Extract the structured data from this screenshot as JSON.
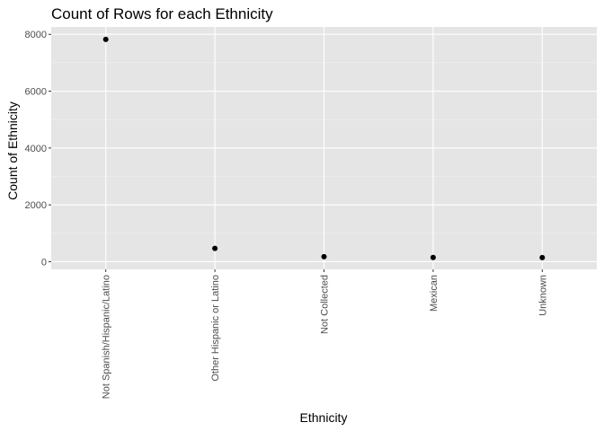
{
  "chart_data": {
    "type": "scatter",
    "title": "Count of Rows for each Ethnicity",
    "xlabel": "Ethnicity",
    "ylabel": "Count of Ethnicity",
    "categories": [
      "Not Spanish/Hispanic/Latino",
      "Other Hispanic or Latino",
      "Not Collected",
      "Mexican",
      "Unknown"
    ],
    "values": [
      7820,
      470,
      175,
      150,
      145
    ],
    "ylim": [
      -270,
      8260
    ],
    "yticks": [
      0,
      2000,
      4000,
      6000,
      8000
    ],
    "grid": true,
    "legend": "none",
    "colors": {
      "panel": "#e5e5e5",
      "grid_major": "#ffffff",
      "point": "#000000"
    }
  }
}
